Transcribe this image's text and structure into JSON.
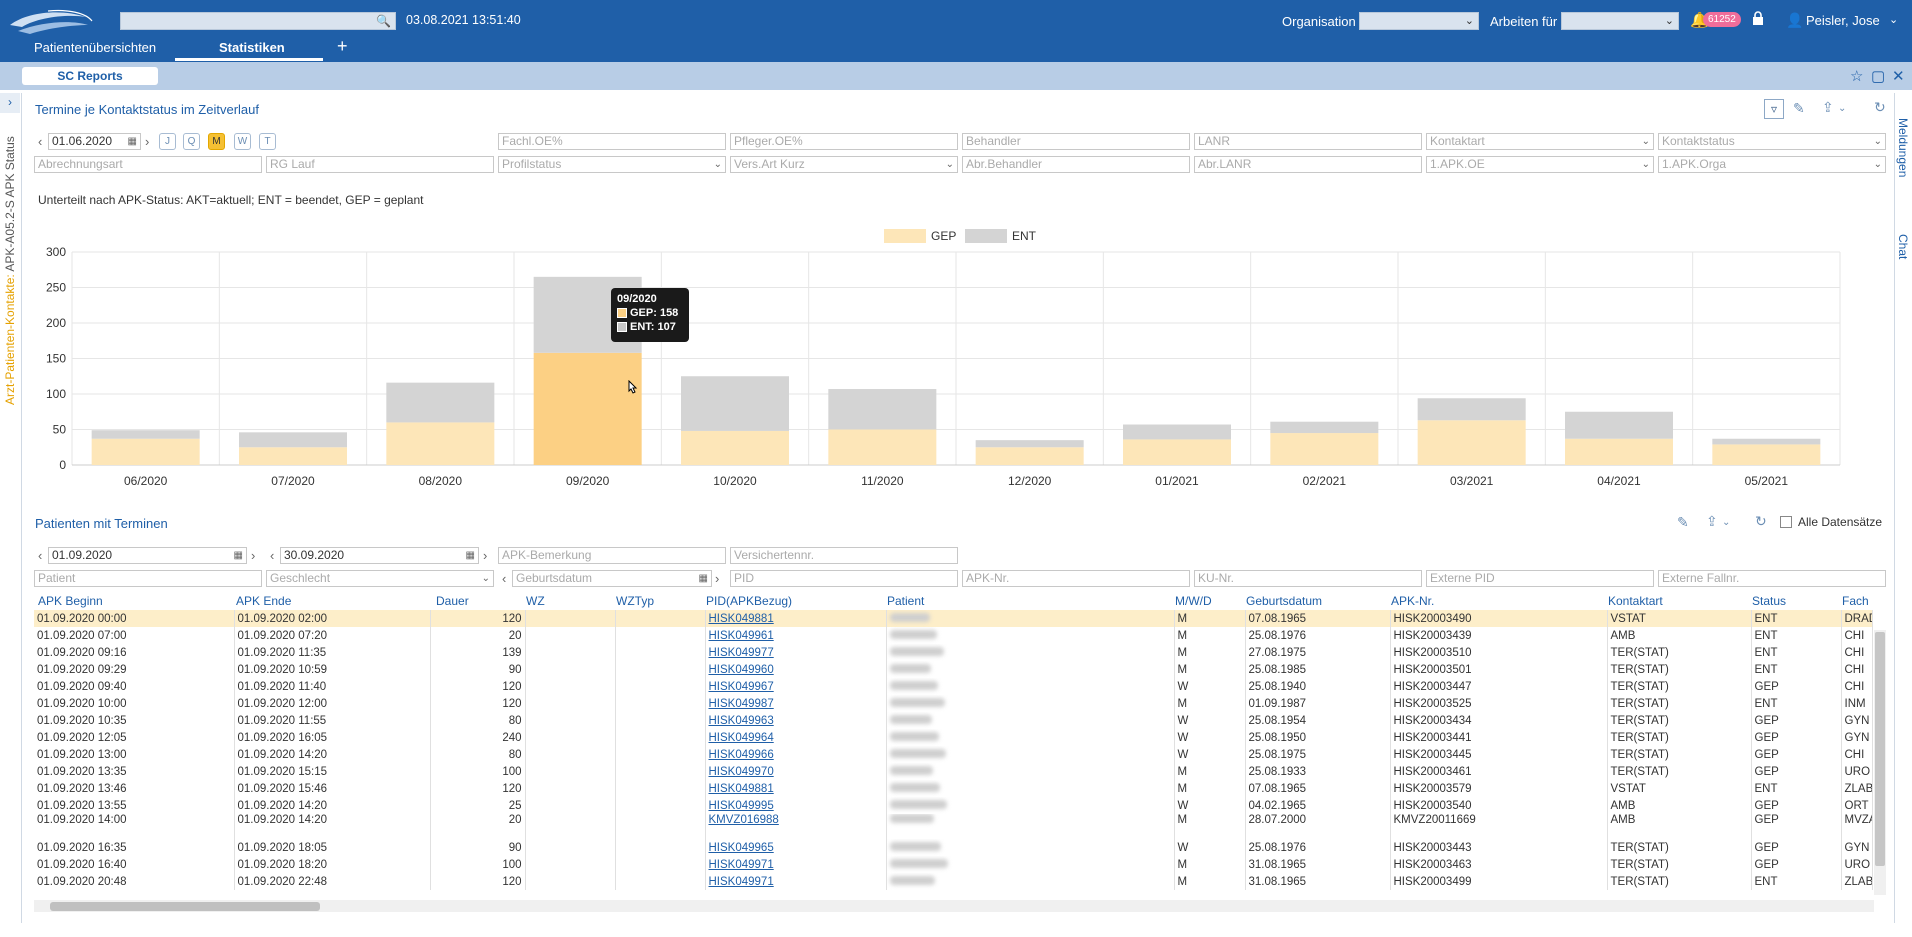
{
  "header": {
    "search_placeholder": "",
    "datetime": "03.08.2021 13:51:40",
    "organisation_label": "Organisation",
    "arbeiten_label": "Arbeiten für",
    "notification_count": "61252",
    "user_name": "Peisler, Jose"
  },
  "tabs": [
    {
      "label": "Patientenübersichten"
    },
    {
      "label": "Statistiken"
    }
  ],
  "subbar": {
    "sc_reports": "SC Reports"
  },
  "leftbar": {
    "vertical_orange": "Arzt-Patienten-Kontakte:",
    "vertical_gray": " APK-A05.2-S APK Status"
  },
  "rightbar": {
    "meldungen": "Meldungen",
    "chat": "Chat"
  },
  "top_section": {
    "title": "Termine je Kontaktstatus im Zeitverlauf",
    "date_value": "01.06.2020",
    "period_buttons": [
      "J",
      "Q",
      "M",
      "W",
      "T"
    ],
    "selected_period": "M",
    "filters_row1": [
      "Fachl.OE%",
      "Pfleger.OE%",
      "Behandler",
      "LANR",
      "Kontaktart",
      "Kontaktstatus"
    ],
    "filters_row2": [
      "Abrechnungsart",
      "RG Lauf",
      "Profilstatus",
      "Vers.Art Kurz",
      "Abr.Behandler",
      "Abr.LANR",
      "1.APK.OE",
      "1.APK.Orga"
    ],
    "note": "Unterteilt nach APK-Status: AKT=aktuell; ENT = beendet, GEP = geplant"
  },
  "chart_data": {
    "type": "bar",
    "stacked": true,
    "categories": [
      "06/2020",
      "07/2020",
      "08/2020",
      "09/2020",
      "10/2020",
      "11/2020",
      "12/2020",
      "01/2021",
      "02/2021",
      "03/2021",
      "04/2021",
      "05/2021"
    ],
    "series": [
      {
        "name": "GEP",
        "color": "#fde6b8",
        "values": [
          37,
          25,
          60,
          158,
          48,
          50,
          25,
          36,
          45,
          63,
          37,
          29
        ]
      },
      {
        "name": "ENT",
        "color": "#d4d4d4",
        "values": [
          12,
          21,
          56,
          107,
          77,
          57,
          10,
          21,
          16,
          31,
          38,
          8
        ]
      }
    ],
    "ylim": [
      0,
      300
    ],
    "yticks": [
      0,
      50,
      100,
      150,
      200,
      250,
      300
    ],
    "legend_position": "top-center",
    "grid": true,
    "highlight_index": 3,
    "highlight_color": "#fcd084",
    "tooltip": {
      "title": "09/2020",
      "lines": [
        "GEP: 158",
        "ENT: 107"
      ]
    }
  },
  "bottom_section": {
    "title": "Patienten mit Terminen",
    "alle_datensaetze": "Alle Datensätze",
    "date_from": "01.09.2020",
    "date_to": "30.09.2020",
    "filters_row1": [
      "APK-Bemerkung",
      "Versichertennr."
    ],
    "filters_row2": [
      "Patient",
      "Geschlecht",
      "Geburtsdatum",
      "PID",
      "APK-Nr.",
      "KU-Nr.",
      "Externe PID",
      "Externe Fallnr."
    ],
    "columns": [
      "APK Beginn",
      "APK Ende",
      "Dauer",
      "WZ",
      "WZTyp",
      "PID(APKBezug)",
      "Patient",
      "M/W/D",
      "Geburtsdatum",
      "APK-Nr.",
      "Kontaktart",
      "Status",
      "Fach"
    ],
    "rows": [
      [
        "01.09.2020 00:00",
        "01.09.2020 02:00",
        "120",
        "",
        "",
        "HISK049881",
        "",
        "M",
        "07.08.1965",
        "HISK20003490",
        "VSTAT",
        "ENT",
        "DRAD"
      ],
      [
        "01.09.2020 07:00",
        "01.09.2020 07:20",
        "20",
        "",
        "",
        "HISK049961",
        "",
        "M",
        "25.08.1976",
        "HISK20003439",
        "AMB",
        "ENT",
        "CHI"
      ],
      [
        "01.09.2020 09:16",
        "01.09.2020 11:35",
        "139",
        "",
        "",
        "HISK049977",
        "",
        "M",
        "27.08.1975",
        "HISK20003510",
        "TER(STAT)",
        "ENT",
        "CHI"
      ],
      [
        "01.09.2020 09:29",
        "01.09.2020 10:59",
        "90",
        "",
        "",
        "HISK049960",
        "",
        "M",
        "25.08.1985",
        "HISK20003501",
        "TER(STAT)",
        "ENT",
        "CHI"
      ],
      [
        "01.09.2020 09:40",
        "01.09.2020 11:40",
        "120",
        "",
        "",
        "HISK049967",
        "",
        "W",
        "25.08.1940",
        "HISK20003447",
        "TER(STAT)",
        "GEP",
        "CHI"
      ],
      [
        "01.09.2020 10:00",
        "01.09.2020 12:00",
        "120",
        "",
        "",
        "HISK049987",
        "",
        "M",
        "01.09.1987",
        "HISK20003525",
        "TER(STAT)",
        "ENT",
        "INM"
      ],
      [
        "01.09.2020 10:35",
        "01.09.2020 11:55",
        "80",
        "",
        "",
        "HISK049963",
        "",
        "W",
        "25.08.1954",
        "HISK20003434",
        "TER(STAT)",
        "GEP",
        "GYN"
      ],
      [
        "01.09.2020 12:05",
        "01.09.2020 16:05",
        "240",
        "",
        "",
        "HISK049964",
        "",
        "W",
        "25.08.1950",
        "HISK20003441",
        "TER(STAT)",
        "GEP",
        "GYN"
      ],
      [
        "01.09.2020 13:00",
        "01.09.2020 14:20",
        "80",
        "",
        "",
        "HISK049966",
        "",
        "W",
        "25.08.1975",
        "HISK20003445",
        "TER(STAT)",
        "GEP",
        "CHI"
      ],
      [
        "01.09.2020 13:35",
        "01.09.2020 15:15",
        "100",
        "",
        "",
        "HISK049970",
        "",
        "M",
        "25.08.1933",
        "HISK20003461",
        "TER(STAT)",
        "GEP",
        "URO"
      ],
      [
        "01.09.2020 13:46",
        "01.09.2020 15:46",
        "120",
        "",
        "",
        "HISK049881",
        "",
        "M",
        "07.08.1965",
        "HISK20003579",
        "VSTAT",
        "ENT",
        "ZLAB"
      ],
      [
        "01.09.2020 13:55",
        "01.09.2020 14:20",
        "25",
        "",
        "",
        "HISK049995",
        "",
        "W",
        "04.02.1965",
        "HISK20003540",
        "AMB",
        "GEP",
        "ORT"
      ],
      [
        "01.09.2020 14:00",
        "01.09.2020 14:20",
        "20",
        "",
        "",
        "KMVZ016988",
        "",
        "M",
        "28.07.2000",
        "KMVZ20011669",
        "AMB",
        "GEP",
        "MVZA"
      ],
      [
        "01.09.2020 16:35",
        "01.09.2020 18:05",
        "90",
        "",
        "",
        "HISK049965",
        "",
        "W",
        "25.08.1976",
        "HISK20003443",
        "TER(STAT)",
        "GEP",
        "GYN"
      ],
      [
        "01.09.2020 16:40",
        "01.09.2020 18:20",
        "100",
        "",
        "",
        "HISK049971",
        "",
        "M",
        "31.08.1965",
        "HISK20003463",
        "TER(STAT)",
        "GEP",
        "URO"
      ],
      [
        "01.09.2020 20:48",
        "01.09.2020 22:48",
        "120",
        "",
        "",
        "HISK049971",
        "",
        "M",
        "31.08.1965",
        "HISK20003499",
        "TER(STAT)",
        "ENT",
        "ZLAB"
      ]
    ]
  }
}
